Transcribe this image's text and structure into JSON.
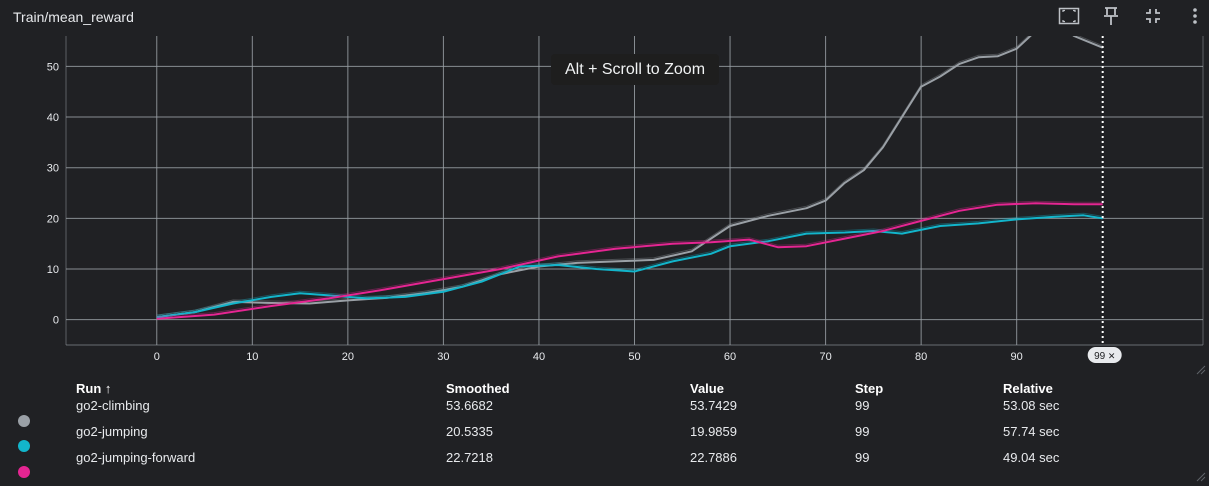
{
  "header": {
    "title": "Train/mean_reward",
    "icons": [
      "fit-to-screen-icon",
      "pin-icon",
      "collapse-icon",
      "more-vert-icon"
    ]
  },
  "tooltip": "Alt + Scroll to Zoom",
  "step_badge": {
    "label": "99",
    "close": "✕"
  },
  "colors": {
    "background": "#202124",
    "grid": "#9aa0a6",
    "go2-climbing": "#9aa0a6",
    "go2-jumping": "#12b5cb",
    "go2-jumping-forward": "#e52592"
  },
  "table": {
    "headers": [
      "Run ↑",
      "Smoothed",
      "Value",
      "Step",
      "Relative"
    ],
    "rows": [
      {
        "run": "go2-climbing",
        "smoothed": "53.6682",
        "value": "53.7429",
        "step": "99",
        "relative": "53.08 sec"
      },
      {
        "run": "go2-jumping",
        "smoothed": "20.5335",
        "value": "19.9859",
        "step": "99",
        "relative": "57.74 sec"
      },
      {
        "run": "go2-jumping-forward",
        "smoothed": "22.7218",
        "value": "22.7886",
        "step": "99",
        "relative": "49.04 sec"
      }
    ]
  },
  "chart_data": {
    "type": "line",
    "title": "Train/mean_reward",
    "xlabel": "",
    "ylabel": "",
    "xlim": [
      -9.5,
      109.5
    ],
    "ylim": [
      -5,
      56
    ],
    "x_ticks": [
      0,
      10,
      20,
      30,
      40,
      50,
      60,
      70,
      80,
      90
    ],
    "y_ticks": [
      0,
      10,
      20,
      30,
      40,
      50
    ],
    "grid": true,
    "cursor_step": 99,
    "series": [
      {
        "name": "go2-climbing",
        "color": "#9aa0a6",
        "points": [
          [
            0,
            0.5
          ],
          [
            4,
            1.5
          ],
          [
            8,
            3.5
          ],
          [
            12,
            3.3
          ],
          [
            16,
            3.2
          ],
          [
            20,
            3.8
          ],
          [
            24,
            4.3
          ],
          [
            28,
            5.2
          ],
          [
            32,
            6.5
          ],
          [
            36,
            9
          ],
          [
            40,
            10.5
          ],
          [
            44,
            11.2
          ],
          [
            48,
            11.5
          ],
          [
            52,
            11.8
          ],
          [
            56,
            13.5
          ],
          [
            60,
            18.5
          ],
          [
            64,
            20.5
          ],
          [
            68,
            22
          ],
          [
            70,
            23.5
          ],
          [
            72,
            27
          ],
          [
            74,
            29.5
          ],
          [
            76,
            34
          ],
          [
            78,
            40
          ],
          [
            80,
            46
          ],
          [
            82,
            48
          ],
          [
            84,
            50.5
          ],
          [
            86,
            51.8
          ],
          [
            88,
            52
          ],
          [
            90,
            53.5
          ],
          [
            92,
            57
          ],
          [
            94,
            59
          ],
          [
            96,
            56
          ],
          [
            99,
            53.7
          ]
        ]
      },
      {
        "name": "go2-jumping",
        "color": "#12b5cb",
        "points": [
          [
            0,
            0.5
          ],
          [
            4,
            1.5
          ],
          [
            8,
            3.2
          ],
          [
            12,
            4.5
          ],
          [
            15,
            5.2
          ],
          [
            18,
            4.8
          ],
          [
            22,
            4.2
          ],
          [
            26,
            4.5
          ],
          [
            30,
            5.5
          ],
          [
            34,
            7.5
          ],
          [
            38,
            10.5
          ],
          [
            42,
            10.8
          ],
          [
            46,
            10
          ],
          [
            50,
            9.5
          ],
          [
            54,
            11.5
          ],
          [
            58,
            13
          ],
          [
            60,
            14.5
          ],
          [
            64,
            15.5
          ],
          [
            68,
            17
          ],
          [
            72,
            17.2
          ],
          [
            75,
            17.5
          ],
          [
            78,
            17
          ],
          [
            82,
            18.5
          ],
          [
            86,
            19
          ],
          [
            90,
            19.8
          ],
          [
            94,
            20.3
          ],
          [
            97,
            20.6
          ],
          [
            99,
            20.0
          ]
        ]
      },
      {
        "name": "go2-jumping-forward",
        "color": "#e52592",
        "points": [
          [
            0,
            0.2
          ],
          [
            6,
            1
          ],
          [
            12,
            2.7
          ],
          [
            18,
            4.2
          ],
          [
            24,
            6
          ],
          [
            30,
            8
          ],
          [
            36,
            10
          ],
          [
            42,
            12.5
          ],
          [
            48,
            14
          ],
          [
            54,
            15
          ],
          [
            58,
            15.3
          ],
          [
            62,
            15.8
          ],
          [
            65,
            14.3
          ],
          [
            68,
            14.5
          ],
          [
            72,
            16
          ],
          [
            76,
            17.5
          ],
          [
            80,
            19.5
          ],
          [
            84,
            21.5
          ],
          [
            88,
            22.7
          ],
          [
            92,
            23
          ],
          [
            96,
            22.8
          ],
          [
            99,
            22.8
          ]
        ]
      }
    ]
  }
}
